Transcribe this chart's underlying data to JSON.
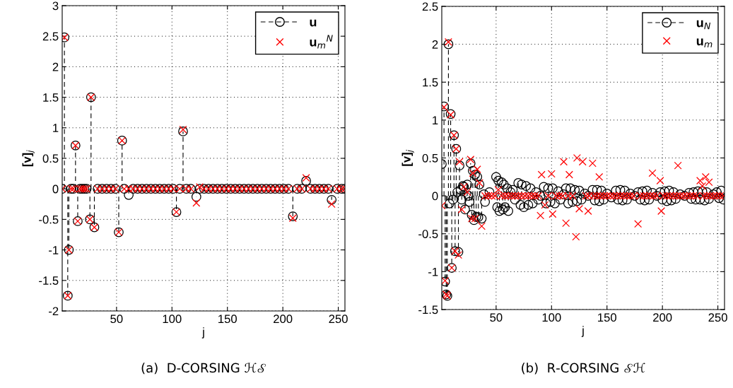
{
  "chart_data": [
    {
      "type": "lollipop",
      "xlabel": "j",
      "ylabel": "[v]$_{j}$",
      "xlim": [
        1,
        256
      ],
      "xticks": [
        50,
        100,
        150,
        200,
        250
      ],
      "ylim": [
        -2,
        3
      ],
      "yticks": [
        -2,
        -1.5,
        -1,
        -0.5,
        0,
        0.5,
        1,
        1.5,
        2,
        2.5,
        3
      ],
      "grid": true,
      "legend": "top right",
      "annotations": [
        "(a)  D-CORSING ℋ𝒮"
      ],
      "series": [
        {
          "name": "u",
          "color": "#000000",
          "marker": "circle",
          "line_style": "dashed",
          "x": [
            1,
            3,
            6,
            7,
            9,
            11,
            13,
            15,
            17,
            19,
            21,
            23,
            26,
            27,
            30,
            33,
            37,
            41,
            45,
            49,
            52,
            55,
            57,
            61,
            65,
            69,
            73,
            77,
            81,
            85,
            89,
            93,
            97,
            101,
            104,
            107,
            110,
            113,
            117,
            122,
            125,
            129,
            133,
            137,
            141,
            145,
            149,
            153,
            157,
            161,
            165,
            169,
            173,
            177,
            181,
            185,
            189,
            193,
            197,
            201,
            205,
            209,
            213,
            217,
            221,
            225,
            229,
            233,
            237,
            241,
            244,
            249,
            253,
            256
          ],
          "values": [
            0,
            2.48,
            -1.75,
            -1.0,
            0,
            0,
            0.71,
            -0.53,
            0,
            0,
            0,
            0,
            -0.5,
            1.5,
            -0.63,
            0,
            0,
            0,
            0,
            0,
            -0.71,
            0.79,
            0,
            -0.1,
            0,
            0,
            0,
            0,
            0,
            0,
            0,
            0,
            0,
            0,
            -0.38,
            0,
            0.94,
            0,
            0,
            -0.13,
            0,
            0,
            0,
            0,
            0,
            0,
            0,
            0,
            0,
            0,
            0,
            0,
            0,
            0,
            0,
            0,
            0,
            0,
            0,
            0,
            0,
            -0.45,
            0,
            0,
            0.13,
            0,
            0,
            0,
            0,
            0,
            -0.18,
            0,
            0,
            0
          ]
        },
        {
          "name": "u$_{m}$$^{N}$",
          "type": "scatter",
          "color": "#ff0000",
          "marker": "cross",
          "x": [
            1,
            3,
            6,
            7,
            9,
            11,
            13,
            15,
            17,
            19,
            21,
            23,
            26,
            27,
            30,
            33,
            37,
            41,
            45,
            49,
            52,
            55,
            57,
            61,
            65,
            69,
            73,
            77,
            81,
            85,
            89,
            93,
            97,
            101,
            104,
            107,
            110,
            113,
            117,
            122,
            125,
            129,
            133,
            137,
            141,
            145,
            149,
            153,
            157,
            161,
            165,
            169,
            173,
            177,
            181,
            185,
            189,
            193,
            197,
            201,
            205,
            209,
            213,
            217,
            221,
            225,
            229,
            233,
            237,
            241,
            244,
            249,
            253,
            256
          ],
          "values": [
            0,
            2.48,
            -1.75,
            -1.0,
            0,
            0,
            0.71,
            -0.53,
            0,
            0,
            0,
            0,
            -0.5,
            1.5,
            -0.63,
            0,
            0,
            0,
            0,
            0,
            -0.71,
            0.79,
            0,
            0,
            0,
            0,
            0,
            0,
            0,
            0,
            0,
            0,
            0,
            0,
            -0.38,
            0,
            0.97,
            0,
            0,
            -0.23,
            0.03,
            0,
            0,
            0,
            0,
            0,
            0,
            0,
            0,
            0,
            0,
            0,
            0,
            0,
            0,
            0,
            0,
            0,
            0,
            0,
            0,
            -0.48,
            0,
            0,
            0.18,
            0,
            0,
            0,
            0,
            0,
            -0.25,
            0,
            0,
            0
          ]
        }
      ]
    },
    {
      "type": "lollipop",
      "xlabel": "j",
      "ylabel": "[v]$_{j}$",
      "xlim": [
        1,
        256
      ],
      "xticks": [
        50,
        100,
        150,
        200,
        250
      ],
      "ylim": [
        -1.5,
        2.5
      ],
      "yticks": [
        -1.5,
        -1,
        -0.5,
        0,
        0.5,
        1,
        1.5,
        2,
        2.5
      ],
      "grid": true,
      "legend": "top right",
      "annotations": [
        "(b)  R-CORSING 𝒮ℋ"
      ],
      "series": [
        {
          "name": "u$_{N}$",
          "color": "#000000",
          "marker": "circle",
          "line_style": "dashed",
          "x": [
            1,
            3,
            4,
            5,
            6,
            7,
            8,
            9,
            10,
            11,
            12,
            13,
            14,
            15,
            16,
            17,
            18,
            19,
            20,
            21,
            22,
            24,
            25,
            26,
            27,
            28,
            29,
            30,
            31,
            32,
            33,
            34,
            35,
            37,
            39,
            40,
            44,
            50,
            51,
            52,
            53,
            55,
            56,
            57,
            58,
            60,
            61,
            63,
            65,
            67,
            70,
            72,
            73,
            75,
            77,
            79,
            81,
            83,
            86,
            88,
            90,
            93,
            95,
            97,
            99,
            101,
            103,
            106,
            108,
            111,
            113,
            115,
            117,
            119,
            121,
            123,
            125,
            127,
            130,
            133,
            137,
            139,
            141,
            143,
            145,
            147,
            150,
            154,
            158,
            160,
            162,
            164,
            166,
            168,
            171,
            175,
            178,
            180,
            182,
            184,
            186,
            188,
            191,
            195,
            198,
            200,
            202,
            204,
            206,
            208,
            210,
            212,
            216,
            220,
            224,
            226,
            228,
            230,
            232,
            234,
            236,
            238,
            240,
            242,
            246,
            249,
            251,
            253,
            255
          ],
          "values": [
            0.42,
            1.18,
            -1.13,
            -1.3,
            -1.32,
            2.0,
            -0.1,
            1.08,
            -0.95,
            -0.05,
            0.8,
            -0.73,
            0.62,
            0.05,
            -0.74,
            0.4,
            0.08,
            -0.05,
            0.13,
            0.12,
            -0.18,
            0.15,
            0.0,
            -0.08,
            0.43,
            -0.25,
            0.33,
            -0.32,
            0.28,
            -0.28,
            0.25,
            -0.28,
            0.15,
            -0.3,
            0.02,
            -0.08,
            0.05,
            0.25,
            -0.15,
            0.2,
            -0.2,
            0.18,
            -0.18,
            0.15,
            -0.15,
            0.1,
            -0.2,
            0.05,
            0.08,
            -0.05,
            0.17,
            -0.12,
            0.15,
            -0.15,
            0.13,
            -0.12,
            0.1,
            -0.1,
            0.05,
            -0.05,
            0.0,
            0.12,
            -0.1,
            0.1,
            -0.08,
            0.1,
            -0.1,
            0.06,
            -0.05,
            0.02,
            0.1,
            -0.1,
            0.1,
            -0.08,
            0.08,
            -0.07,
            0.07,
            -0.05,
            0.03,
            0.0,
            0.08,
            -0.06,
            0.08,
            -0.07,
            0.07,
            -0.05,
            0.03,
            -0.02,
            0.07,
            -0.05,
            0.08,
            -0.06,
            0.07,
            -0.05,
            0.03,
            0.0,
            0.05,
            -0.05,
            0.06,
            -0.06,
            0.07,
            -0.05,
            0.04,
            0.0,
            0.05,
            -0.05,
            0.06,
            -0.07,
            0.07,
            -0.06,
            0.05,
            -0.04,
            0.02,
            0.0,
            0.04,
            -0.04,
            0.05,
            -0.05,
            0.06,
            -0.05,
            0.06,
            -0.06,
            0.05,
            -0.04,
            0.02,
            0.05,
            -0.03,
            0.07,
            -0.05
          ]
        },
        {
          "name": "u$_{m}$",
          "type": "scatter",
          "color": "#ff0000",
          "marker": "cross",
          "x": [
            1,
            3,
            4,
            5,
            6,
            7,
            9,
            10,
            12,
            13,
            14,
            16,
            17,
            19,
            21,
            24,
            27,
            28,
            29,
            31,
            33,
            35,
            37,
            40,
            43,
            46,
            49,
            52,
            55,
            58,
            61,
            64,
            67,
            70,
            73,
            76,
            79,
            82,
            85,
            88,
            90,
            91,
            94,
            97,
            100,
            101,
            104,
            107,
            110,
            111,
            113,
            115,
            116,
            119,
            122,
            123,
            125,
            128,
            131,
            133,
            134,
            137,
            138,
            141,
            143,
            144,
            147,
            150,
            153,
            156,
            159,
            162,
            165,
            168,
            171,
            174,
            178,
            180,
            183,
            186,
            189,
            191,
            192,
            195,
            198,
            199,
            201,
            204,
            207,
            210,
            213,
            214,
            216,
            219,
            222,
            225,
            228,
            231,
            234,
            236,
            237,
            239,
            240,
            242,
            243,
            246,
            249,
            252,
            255
          ],
          "values": [
            -0.13,
            1.17,
            -1.12,
            -1.3,
            -1.32,
            2.03,
            1.07,
            -0.95,
            0.8,
            -0.73,
            0.62,
            -0.78,
            0.45,
            -0.18,
            0.12,
            0.05,
            0.48,
            -0.3,
            0.3,
            -0.3,
            0.35,
            0.17,
            -0.4,
            0,
            0,
            0,
            0,
            0.08,
            0,
            0,
            0,
            0,
            0,
            0,
            0,
            0,
            0,
            0,
            0,
            0,
            -0.26,
            0.28,
            -0.12,
            0,
            0.29,
            -0.24,
            0,
            0,
            0,
            0.45,
            -0.36,
            0,
            0.28,
            0,
            -0.54,
            0.5,
            -0.17,
            0.45,
            0,
            -0.2,
            0,
            0.43,
            0,
            0,
            0.25,
            0,
            0,
            0,
            0,
            0,
            0,
            0,
            0,
            0,
            0,
            0,
            -0.37,
            0,
            0,
            0,
            0,
            0.3,
            0,
            0,
            0.2,
            -0.2,
            0,
            0,
            0,
            0,
            0,
            0.4,
            0,
            0,
            0,
            0,
            0,
            0,
            0.2,
            0.13,
            0,
            0.25,
            0,
            0.18,
            0,
            0,
            0,
            0,
            0
          ]
        }
      ]
    }
  ]
}
